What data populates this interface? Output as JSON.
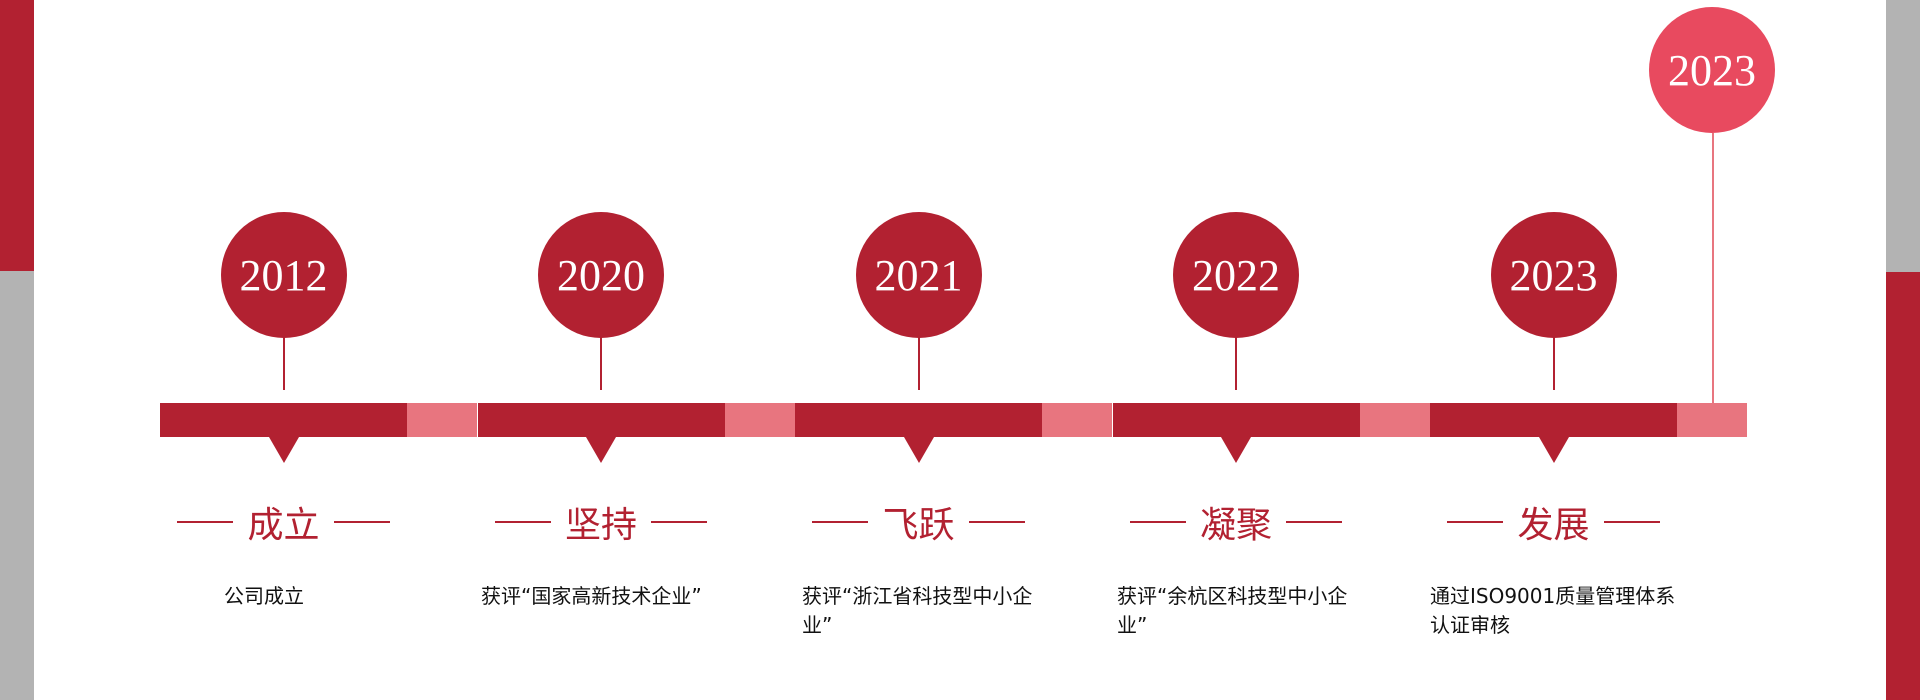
{
  "colors": {
    "primary": "#B22131",
    "secondary": "#E8757F",
    "highlight": "#E84A5F",
    "side_gray": "#B3B3B3"
  },
  "milestones": [
    {
      "year": "2012",
      "title": "成立",
      "desc": "公司成立"
    },
    {
      "year": "2020",
      "title": "坚持",
      "desc": "获评“国家高新技术企业”"
    },
    {
      "year": "2021",
      "title": "飞跃",
      "desc": "获评“浙江省科技型中小企业”"
    },
    {
      "year": "2022",
      "title": "凝聚",
      "desc": "获评“余杭区科技型中小企业”"
    },
    {
      "year": "2023",
      "title": "发展",
      "desc": "通过ISO9001质量管理体系认证审核"
    }
  ],
  "latest": {
    "year": "2023"
  }
}
